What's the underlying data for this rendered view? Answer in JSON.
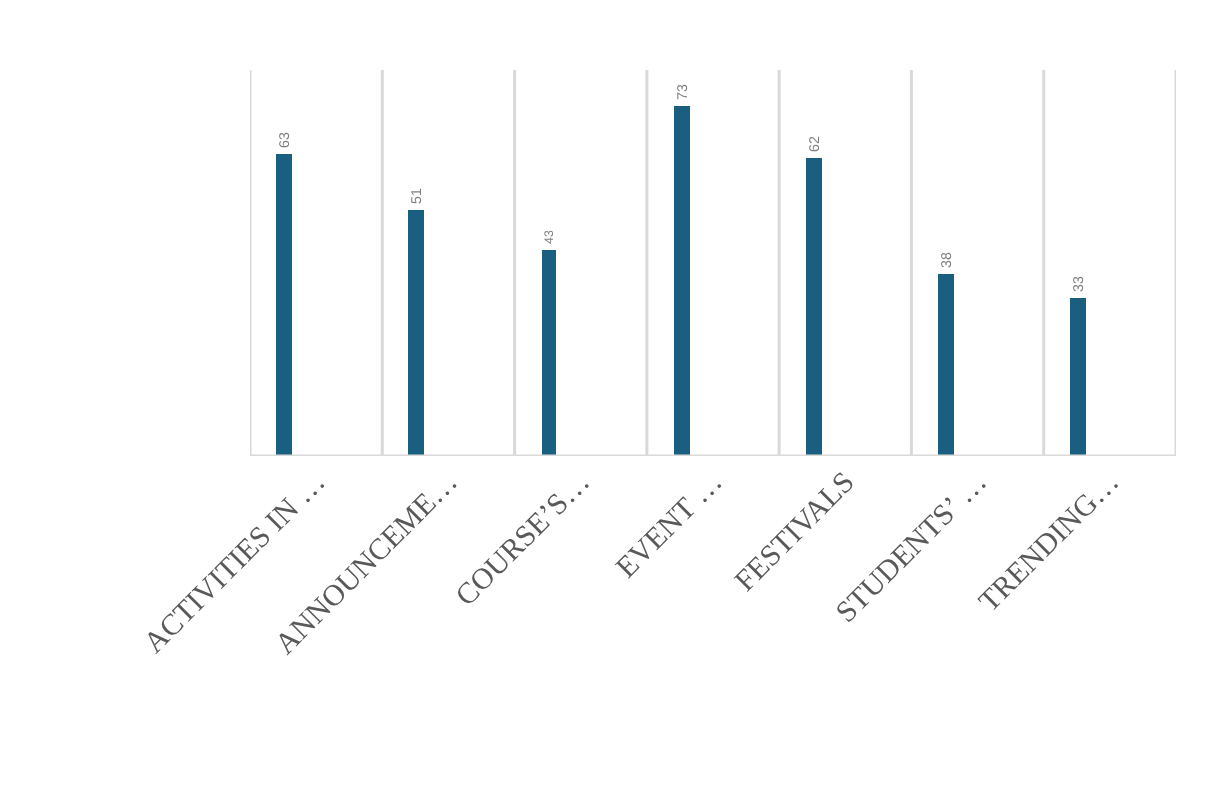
{
  "chart_data": {
    "type": "bar",
    "categories": [
      "ACTIVITIES IN …",
      "ANNOUNCEME…",
      "COURSE’S…",
      "EVENT …",
      "FESTIVALS",
      "STUDENTS’ …",
      "TRENDING…"
    ],
    "values": [
      63,
      51,
      43,
      73,
      62,
      38,
      33
    ],
    "color": "#1a5e80",
    "data_labels": true,
    "grid": "x"
  }
}
